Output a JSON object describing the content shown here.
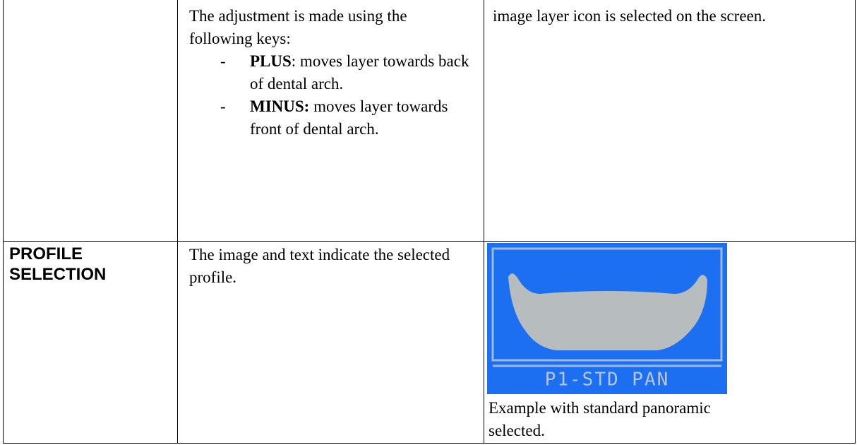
{
  "table": {
    "rows": [
      {
        "description": {
          "intro": "The adjustment is made using the following keys:",
          "keys": [
            {
              "key": "PLUS",
              "text": ": moves layer towards back of dental arch."
            },
            {
              "key": "MINUS:",
              "text": " moves layer towards front of dental arch."
            }
          ]
        },
        "notes": "image layer icon is selected on the screen."
      },
      {
        "label": "PROFILE SELECTION",
        "description": "The image and text indicate the selected profile.",
        "screen_text": "P1-STD PAN",
        "notes": "Example with standard panoramic selected."
      }
    ]
  }
}
